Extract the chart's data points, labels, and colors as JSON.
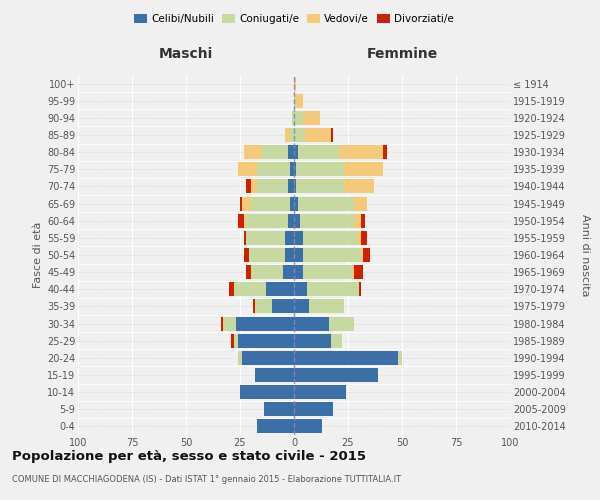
{
  "age_groups": [
    "0-4",
    "5-9",
    "10-14",
    "15-19",
    "20-24",
    "25-29",
    "30-34",
    "35-39",
    "40-44",
    "45-49",
    "50-54",
    "55-59",
    "60-64",
    "65-69",
    "70-74",
    "75-79",
    "80-84",
    "85-89",
    "90-94",
    "95-99",
    "100+"
  ],
  "birth_years": [
    "2010-2014",
    "2005-2009",
    "2000-2004",
    "1995-1999",
    "1990-1994",
    "1985-1989",
    "1980-1984",
    "1975-1979",
    "1970-1974",
    "1965-1969",
    "1960-1964",
    "1955-1959",
    "1950-1954",
    "1945-1949",
    "1940-1944",
    "1935-1939",
    "1930-1934",
    "1925-1929",
    "1920-1924",
    "1915-1919",
    "≤ 1914"
  ],
  "colors": {
    "celibi": "#3a6fa8",
    "coniugati": "#c5d9a0",
    "vedovi": "#f5c97a",
    "divorziati": "#cc2200"
  },
  "male": {
    "celibi": [
      17,
      14,
      25,
      18,
      24,
      26,
      27,
      10,
      13,
      5,
      4,
      4,
      3,
      2,
      3,
      2,
      3,
      0,
      0,
      0,
      0
    ],
    "coniugati": [
      0,
      0,
      0,
      0,
      2,
      2,
      6,
      8,
      15,
      15,
      17,
      18,
      19,
      18,
      14,
      15,
      12,
      2,
      1,
      0,
      0
    ],
    "vedovi": [
      0,
      0,
      0,
      0,
      0,
      0,
      0,
      0,
      0,
      0,
      0,
      0,
      1,
      4,
      3,
      9,
      8,
      2,
      0,
      0,
      0
    ],
    "divorziati": [
      0,
      0,
      0,
      0,
      0,
      1,
      1,
      1,
      2,
      2,
      2,
      1,
      3,
      1,
      2,
      0,
      0,
      0,
      0,
      0,
      0
    ]
  },
  "female": {
    "celibi": [
      13,
      18,
      24,
      39,
      48,
      17,
      16,
      7,
      6,
      4,
      4,
      4,
      3,
      2,
      1,
      1,
      2,
      0,
      0,
      0,
      0
    ],
    "coniugati": [
      0,
      0,
      0,
      0,
      2,
      5,
      12,
      16,
      24,
      23,
      27,
      25,
      25,
      26,
      22,
      22,
      19,
      5,
      4,
      1,
      0
    ],
    "vedovi": [
      0,
      0,
      0,
      0,
      0,
      0,
      0,
      0,
      0,
      1,
      1,
      2,
      3,
      6,
      14,
      18,
      20,
      12,
      8,
      3,
      1
    ],
    "divorziati": [
      0,
      0,
      0,
      0,
      0,
      0,
      0,
      0,
      1,
      4,
      3,
      3,
      2,
      0,
      0,
      0,
      2,
      1,
      0,
      0,
      0
    ]
  },
  "xlim": 100,
  "title": "Popolazione per età, sesso e stato civile - 2015",
  "subtitle": "COMUNE DI MACCHIAGODENA (IS) - Dati ISTAT 1° gennaio 2015 - Elaborazione TUTTITALIA.IT",
  "ylabel_left": "Fasce di età",
  "ylabel_right": "Anni di nascita",
  "xlabel_left": "Maschi",
  "xlabel_right": "Femmine",
  "background_color": "#f0f0f0"
}
